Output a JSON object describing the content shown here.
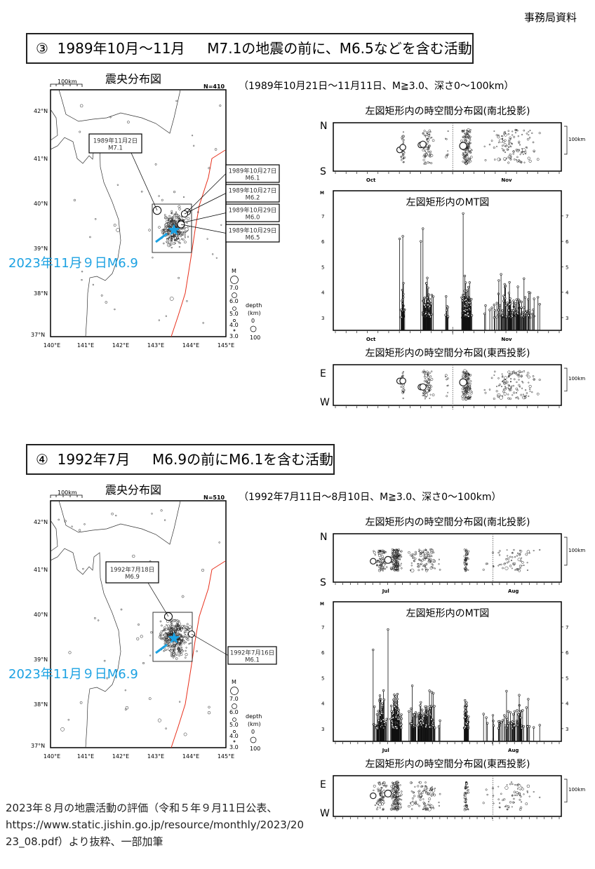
{
  "doc_label": "事務局資料",
  "footer": {
    "line1": "2023年８月の地震活動の評価（令和５年９月11日公表、",
    "line2": "https://www.static.jishin.go.jp/resource/monthly/2023/2023_08.pdf）より抜粋、一部加筆"
  },
  "common": {
    "map_title": "震央分布図",
    "scale_label": "100km",
    "lat_labels": [
      "42°N",
      "41°N",
      "40°N",
      "39°N",
      "38°N",
      "37°N"
    ],
    "lon_labels": [
      "140°E",
      "141°E",
      "142°E",
      "143°E",
      "144°E",
      "145°E"
    ],
    "legend_m": "M",
    "legend_m_values": [
      "7.0",
      "6.0",
      "5.0",
      "4.0",
      "3.0"
    ],
    "legend_depth": "depth",
    "legend_depth_unit": "(km)",
    "legend_depth_values": [
      "0",
      "100"
    ],
    "reference_quake_label": "2023年11月９日M6.9",
    "ns_title": "左図矩形内の時空間分布図(南北投影)",
    "mt_title": "左図矩形内のMT図",
    "ew_title": "左図矩形内の時空間分布図(東西投影)",
    "n": "N",
    "s": "S",
    "e": "E",
    "w": "W",
    "mt_axis_label": "M",
    "mt_ticks": [
      "7",
      "6",
      "5",
      "4",
      "3"
    ],
    "colors": {
      "reference": "#1ba1e2",
      "trench": "#e8301c"
    }
  },
  "sections": [
    {
      "title": "③  1989年10月～11月     M7.1の地震の前に、M6.5などを含む活動",
      "period": "（1989年10月21日～11月11日、M≧3.0、深さ0～100km）",
      "count": "N=410",
      "month_labels": [
        "Oct",
        "Nov"
      ],
      "span_days": 21,
      "events": [
        {
          "date": "1989年11月2日",
          "mag": "M7.1",
          "day": 12,
          "m": 7.1
        },
        {
          "date": "1989年10月27日",
          "mag": "M6.1",
          "day": 6,
          "m": 6.1
        },
        {
          "date": "1989年10月27日",
          "mag": "M6.2",
          "day": 6.3,
          "m": 6.2
        },
        {
          "date": "1989年10月29日",
          "mag": "M6.0",
          "day": 8,
          "m": 6.0
        },
        {
          "date": "1989年10月29日",
          "mag": "M6.5",
          "day": 8.2,
          "m": 6.5
        }
      ]
    },
    {
      "title": "④  1992年7月     M6.9の前にM6.1を含む活動",
      "period": "（1992年7月11日～8月10日、M≧3.0、深さ0～100km）",
      "count": "N=510",
      "month_labels": [
        "Jul",
        "Aug"
      ],
      "span_days": 30,
      "events": [
        {
          "date": "1992年7月18日",
          "mag": "M6.9",
          "day": 7,
          "m": 6.9
        },
        {
          "date": "1992年7月16日",
          "mag": "M6.1",
          "day": 5,
          "m": 6.1
        }
      ]
    }
  ]
}
